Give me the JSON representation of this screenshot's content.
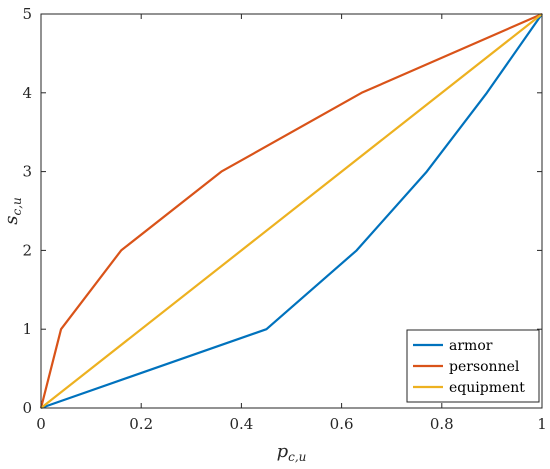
{
  "chart_data": {
    "type": "line",
    "xlabel_main": "p",
    "xlabel_sub": "c,u",
    "ylabel_main": "s",
    "ylabel_sub": "c,u",
    "xlim": [
      0,
      1
    ],
    "ylim": [
      0,
      5
    ],
    "xticks": [
      0,
      0.2,
      0.4,
      0.6,
      0.8,
      1
    ],
    "xtick_labels": [
      "0",
      "0.2",
      "0.4",
      "0.6",
      "0.8",
      "1"
    ],
    "yticks": [
      0,
      1,
      2,
      3,
      4,
      5
    ],
    "ytick_labels": [
      "0",
      "1",
      "2",
      "3",
      "4",
      "5"
    ],
    "grid": false,
    "legend_position": "bottom-right",
    "series": [
      {
        "name": "armor",
        "color": "#0072BD",
        "x": [
          0,
          0.45,
          0.63,
          0.77,
          0.89,
          1
        ],
        "y": [
          0,
          1,
          2,
          3,
          4,
          5
        ]
      },
      {
        "name": "personnel",
        "color": "#D95319",
        "x": [
          0,
          0.04,
          0.16,
          0.36,
          0.64,
          1
        ],
        "y": [
          0,
          1,
          2,
          3,
          4,
          5
        ]
      },
      {
        "name": "equipment",
        "color": "#EDB120",
        "x": [
          0,
          1
        ],
        "y": [
          0,
          5
        ]
      }
    ]
  }
}
